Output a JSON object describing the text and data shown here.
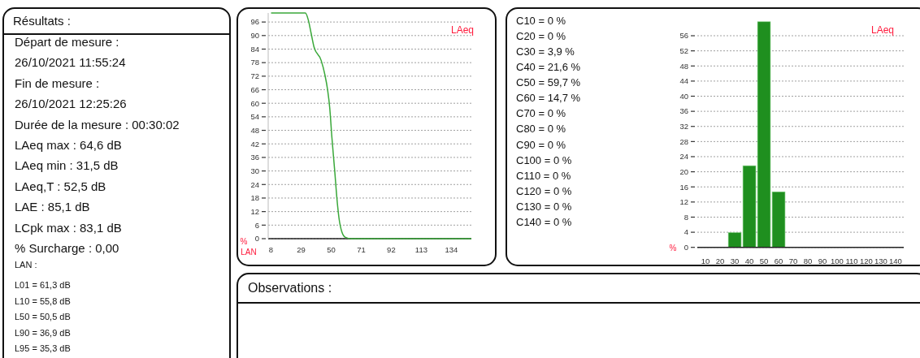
{
  "chart_data": [
    {
      "type": "other",
      "title": "Résultats :",
      "annotations": [
        "Départ de mesure :",
        "26/10/2021 11:55:24",
        "Fin de mesure :",
        "26/10/2021 12:25:26",
        "Durée de la mesure : 00:30:02",
        "LAeq max : 64,6 dB",
        "LAeq min : 31,5 dB",
        "LAeq,T : 52,5 dB",
        "LAE : 85,1 dB",
        "LCpk max : 83,1 dB",
        "% Surcharge : 0,00"
      ]
    },
    {
      "type": "other",
      "title": "LAN :",
      "annotations": [
        "L01 = 61,3 dB",
        "L10 = 55,8 dB",
        "L50 = 50,5 dB",
        "L90 = 36,9 dB",
        "L95 = 35,3 dB"
      ]
    },
    {
      "type": "line",
      "title": "LAeq",
      "xlabel": "LAN",
      "ylabel": "%",
      "x": [
        8,
        32,
        34,
        36,
        38,
        43,
        45.5,
        47.5,
        49,
        50.5,
        52.5,
        54,
        55.5,
        57.5,
        60,
        64,
        148
      ],
      "series": [
        {
          "color": "#3aa83a",
          "values": [
            100,
            100,
            97,
            91,
            85,
            79,
            73,
            66,
            58,
            45,
            30,
            18,
            9,
            3,
            0.6,
            0,
            0
          ]
        }
      ],
      "xlim": [
        6,
        148
      ],
      "ylim": [
        0,
        100
      ],
      "xticks": [
        8,
        29,
        50,
        71,
        92,
        113,
        134
      ],
      "yticks": [
        0,
        6,
        12,
        18,
        24,
        30,
        36,
        42,
        48,
        54,
        60,
        66,
        72,
        78,
        84,
        90,
        96
      ],
      "grid": "y"
    },
    {
      "type": "bar",
      "title": "LAeq",
      "ylabel": "%",
      "categories": [
        "10",
        "20",
        "30",
        "40",
        "50",
        "60",
        "70",
        "80",
        "90",
        "100",
        "110",
        "120",
        "130",
        "140"
      ],
      "values": [
        0,
        0,
        3.9,
        21.6,
        59.7,
        14.7,
        0,
        0,
        0,
        0,
        0,
        0,
        0,
        0
      ],
      "color": "#1f8f1f",
      "annotations": [
        "C10 = 0 %",
        "C20 = 0 %",
        "C30 = 3,9 %",
        "C40 = 21,6 %",
        "C50 = 59,7 %",
        "C60 = 14,7 %",
        "C70 = 0 %",
        "C80 = 0 %",
        "C90 = 0 %",
        "C100 = 0 %",
        "C110 = 0 %",
        "C120 = 0 %",
        "C130 = 0 %",
        "C140 = 0 %"
      ],
      "ylim": [
        0,
        60
      ],
      "yticks": [
        0,
        4,
        8,
        12,
        16,
        20,
        24,
        28,
        32,
        36,
        40,
        44,
        48,
        52,
        56
      ],
      "grid": "y"
    },
    {
      "type": "other",
      "title": "Observations :"
    }
  ]
}
